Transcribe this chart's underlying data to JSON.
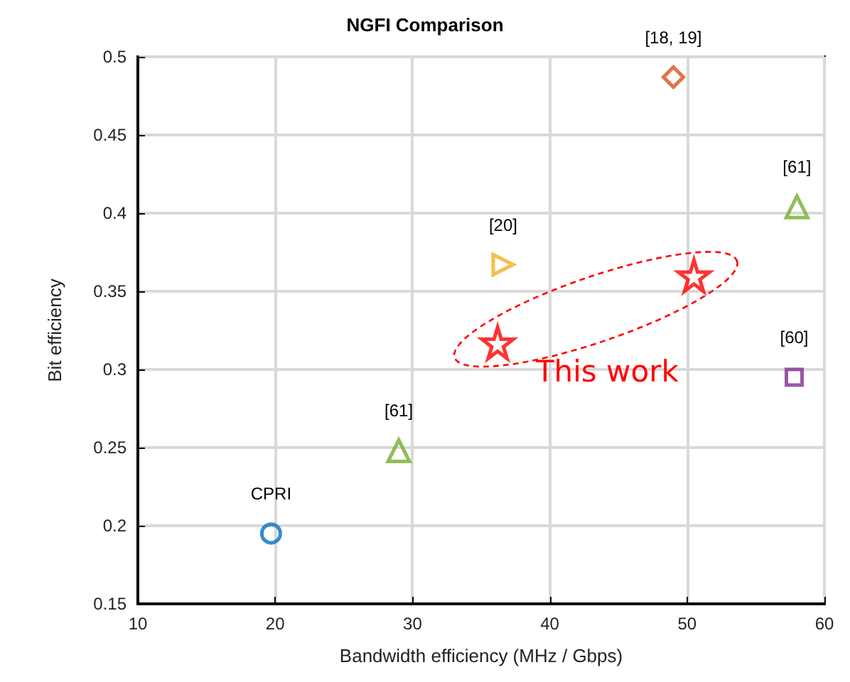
{
  "chart_data": {
    "type": "scatter",
    "title": "NGFI Comparison",
    "xlabel": "Bandwidth efficiency (MHz / Gbps)",
    "ylabel": "Bit efficiency",
    "xlim": [
      10,
      60
    ],
    "xticks": [
      10,
      20,
      30,
      40,
      50,
      60
    ],
    "ylim": [
      0.15,
      0.5
    ],
    "yticks": [
      0.15,
      0.2,
      0.25,
      0.3,
      0.35,
      0.4,
      0.45,
      0.5
    ],
    "grid": true,
    "legend": false,
    "series": [
      {
        "name": "CPRI",
        "color": "#0072bd",
        "marker": "circle",
        "x": [
          19.7
        ],
        "values": [
          0.195
        ]
      },
      {
        "name": "[61]",
        "color": "#77ac30",
        "marker": "triangle",
        "x": [
          29
        ],
        "values": [
          0.248
        ]
      },
      {
        "name": "[20]",
        "color": "#edb120",
        "marker": "triangle-right",
        "x": [
          36.6
        ],
        "values": [
          0.367
        ]
      },
      {
        "name": "[18, 19]",
        "color": "#d95319",
        "marker": "diamond",
        "x": [
          49
        ],
        "values": [
          0.487
        ]
      },
      {
        "name": "[61]",
        "color": "#77ac30",
        "marker": "triangle",
        "x": [
          58
        ],
        "values": [
          0.404
        ]
      },
      {
        "name": "[60]",
        "color": "#7e2f8e",
        "marker": "square",
        "x": [
          57.8
        ],
        "values": [
          0.295
        ]
      },
      {
        "name": "This work",
        "color": "#ff0000",
        "marker": "star",
        "x": [
          36.2,
          50.5
        ],
        "values": [
          0.317,
          0.36
        ]
      }
    ]
  }
}
